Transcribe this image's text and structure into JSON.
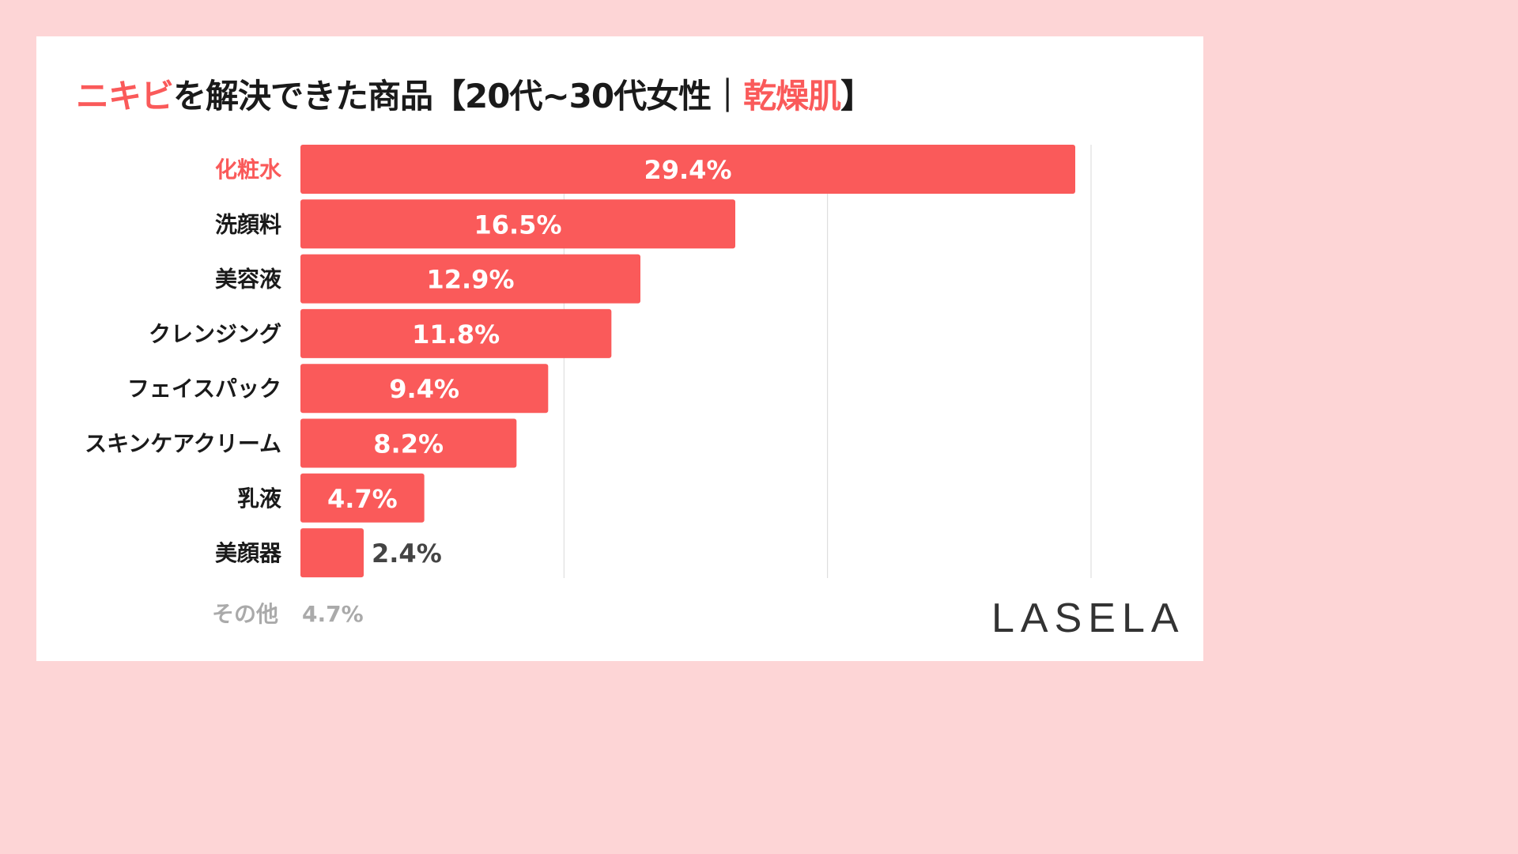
{
  "title": {
    "part1": "ニキビ",
    "part2": "を解決できた商品【20代~30代女性｜",
    "part3": "乾燥肌",
    "part4": "】"
  },
  "colors": {
    "bar": "#fa5a5a",
    "accent": "#fa5a5a",
    "background": "#fdd5d6",
    "grid": "#d9d9d9"
  },
  "chart_data": {
    "type": "bar",
    "orientation": "horizontal",
    "categories": [
      "化粧水",
      "洗顔料",
      "美容液",
      "クレンジング",
      "フェイスパック",
      "スキンケアクリーム",
      "乳液",
      "美顔器"
    ],
    "values": [
      29.4,
      16.5,
      12.9,
      11.8,
      9.4,
      8.2,
      4.7,
      2.4
    ],
    "labels": [
      "29.4%",
      "16.5%",
      "12.9%",
      "11.8%",
      "9.4%",
      "8.2%",
      "4.7%",
      "2.4%"
    ],
    "xlim": [
      0,
      30
    ],
    "grid": true,
    "highlight_category": "化粧水"
  },
  "other": {
    "label": "その他",
    "value": "4.7%"
  },
  "logo": "LASELA"
}
